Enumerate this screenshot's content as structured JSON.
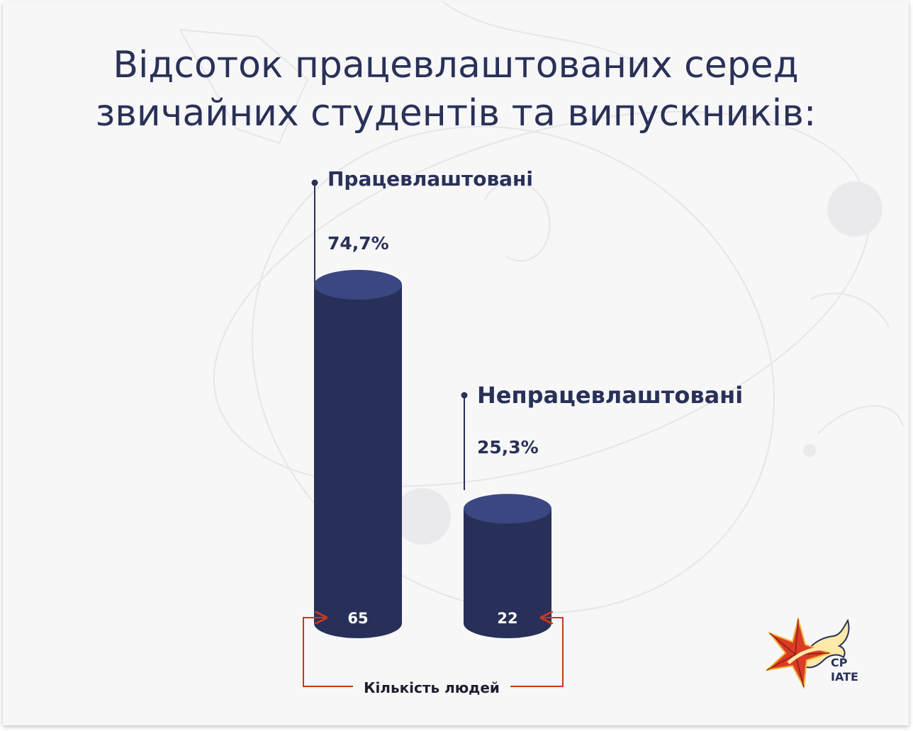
{
  "title": {
    "line1": "Відсоток працевлаштованих серед",
    "line2": "звичайних студентів та випускників:"
  },
  "chart_data": {
    "type": "bar",
    "categories": [
      "Працевлаштовані",
      "Непрацевлаштовані"
    ],
    "percent_labels": [
      "74,7%",
      "25,3%"
    ],
    "percent_values": [
      74.7,
      25.3
    ],
    "values": [
      65,
      22
    ],
    "value_labels": [
      "65",
      "22"
    ],
    "axis_label": "Кількість людей",
    "colors": {
      "bar": "#283059",
      "bar_top": "#3b4781",
      "arrow": "#c8381f",
      "text": "#2a3158"
    },
    "grid": false
  },
  "logo": {
    "line1": "CP",
    "line2": "IATE"
  }
}
